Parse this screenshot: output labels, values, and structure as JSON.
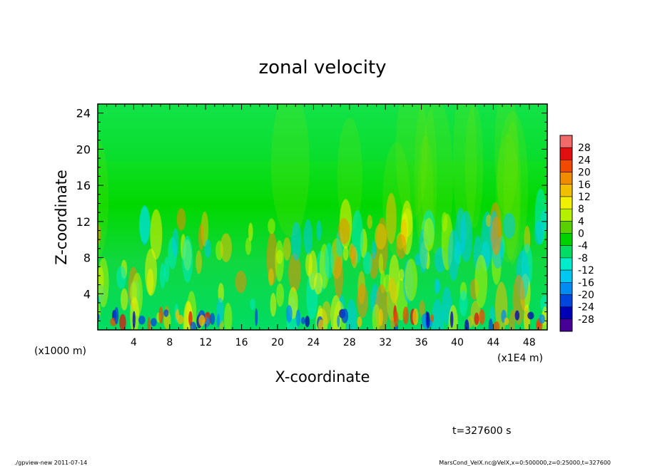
{
  "chart_data": {
    "type": "heatmap",
    "title": "zonal velocity",
    "xlabel": "X-coordinate",
    "ylabel": "Z-coordinate",
    "x_unit": "(x1E4 m)",
    "y_unit": "(x1000 m)",
    "xlim": [
      0,
      50
    ],
    "ylim": [
      0,
      25
    ],
    "x_ticks": [
      "4",
      "8",
      "12",
      "16",
      "20",
      "24",
      "28",
      "32",
      "36",
      "40",
      "44",
      "48"
    ],
    "y_ticks": [
      "4",
      "8",
      "12",
      "16",
      "20",
      "24"
    ],
    "colorbar": {
      "levels": [
        "28",
        "24",
        "20",
        "16",
        "12",
        "8",
        "4",
        "0",
        "-4",
        "-8",
        "-12",
        "-16",
        "-20",
        "-24",
        "-28"
      ],
      "colors": [
        "#f06a6a",
        "#e01010",
        "#f04a00",
        "#f08c00",
        "#f0c000",
        "#f0f000",
        "#b4f000",
        "#5ad000",
        "#00d200",
        "#00dc64",
        "#00ebc8",
        "#00c8f0",
        "#008cf0",
        "#0046dc",
        "#0000b4",
        "#460096"
      ]
    },
    "annotations": {
      "time": "t=327600 s",
      "footer_left": "./gpview-new   2011-07-14",
      "footer_right": "MarsCond_VelX.nc@VelX,x=0:500000,z=0:25000,t=327600"
    }
  }
}
